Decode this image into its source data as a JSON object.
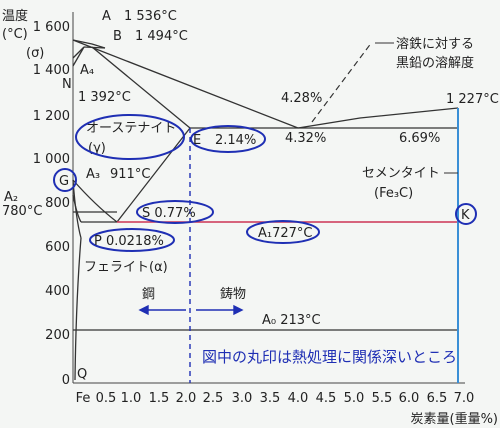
{
  "y_title": [
    "温度",
    "(°C)",
    "(σ)"
  ],
  "y_ticks": [
    "1 600",
    "1 400",
    "1 200",
    "1 000",
    "800",
    "600",
    "400",
    "200",
    "0"
  ],
  "x_ticks": [
    "Fe",
    "0.5",
    "1.0",
    "1.5",
    "2.0",
    "2.5",
    "3.0",
    "3.5",
    "4.0",
    "4.5",
    "5.0",
    "5.5",
    "6.0",
    "6.5",
    "7.0"
  ],
  "x_title": "炭素量(重量%)",
  "points": {
    "A": "A",
    "A_temp": "1 536°C",
    "B": "B",
    "B_temp": "1 494°C",
    "A4": "A₄",
    "N": "N",
    "A4_temp": "1 392°C",
    "G": "G",
    "A3": "A₃",
    "A3_temp": "911°C",
    "A2": "A₂",
    "A2_temp": "780°C",
    "E": "E",
    "E_val": "2.14%",
    "S_val": "S  0.77%",
    "P_val": "P  0.0218%",
    "A1": "A₁727°C",
    "A0": "A₀  213°C",
    "Q": "Q",
    "eutectic_pct": "4.28%",
    "eutectic_c": "4.32%",
    "cem_pct": "6.69%",
    "eutectic_temp": "1 227°C",
    "K": "K"
  },
  "labels": {
    "austenite_1": "オーステナイト",
    "austenite_2": "(γ)",
    "ferrite": "フェライト(α)",
    "cementite_1": "セメンタイト",
    "cementite_2": "(Fe₃C)",
    "solubility_1": "溶鉄に対する",
    "solubility_2": "黒鉛の溶解度",
    "steel": "鋼",
    "cast_iron": "鋳物",
    "note": "図中の丸印は熱処理に関係深いところ"
  },
  "colors": {
    "line": "#333333",
    "a1_line": "#cc3355",
    "cementite_line": "#3a8fd6",
    "circle": "#1f2fb4",
    "note": "#1f2fb4"
  }
}
